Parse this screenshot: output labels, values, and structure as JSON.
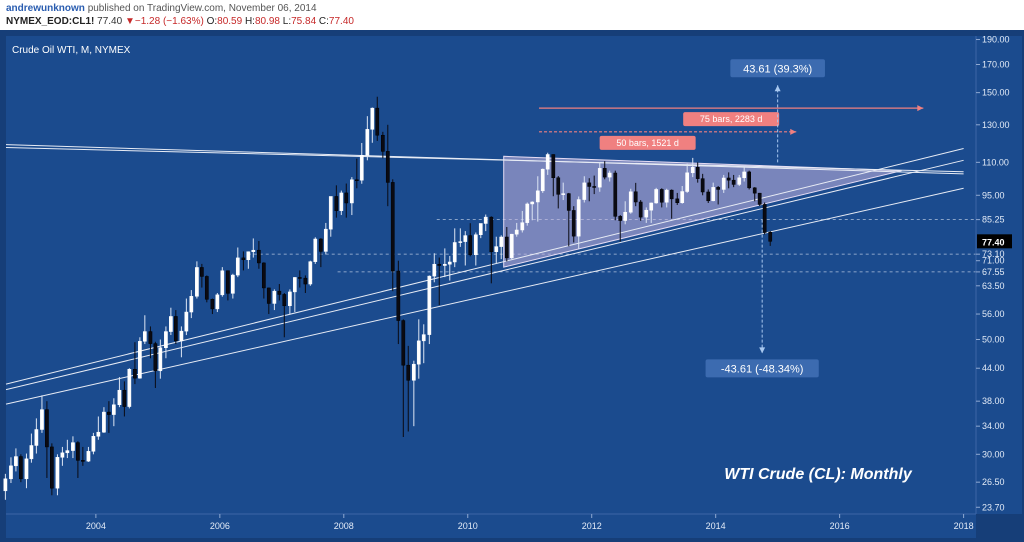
{
  "header": {
    "author": "andrewunknown",
    "published": "published on TradingView.com, November 06, 2014",
    "symbol": "NYMEX_EOD:CL1!",
    "last": "77.40",
    "change_arrow": "▼",
    "change": "−1.28 (−1.63%)",
    "o_label": "O:",
    "o": "80.59",
    "h_label": "H:",
    "h": "80.98",
    "l_label": "L:",
    "l": "75.84",
    "c_label": "C:",
    "c": "77.40"
  },
  "colors": {
    "background": "#1b4b8e",
    "frame": "#163e78",
    "up": "#ffffff",
    "down": "#0a0a12",
    "trendline": "#e8ecf5",
    "triangle_fill": "#c6b6e0",
    "measure_pink": "#f08080",
    "measure_blue": "#a8c8f0"
  },
  "chart_data": {
    "type": "candlestick",
    "title": "Crude Oil WTI, M, NYMEX",
    "annotation_title": "WTI Crude (CL): Monthly",
    "y_scale": "log",
    "ylim": [
      23.0,
      193.0
    ],
    "xlim": [
      2002.55,
      2018.2
    ],
    "x_ticks": [
      "2004",
      "2006",
      "2008",
      "2010",
      "2012",
      "2014",
      "2016",
      "2018"
    ],
    "y_ticks": [
      "190.00",
      "170.00",
      "150.00",
      "130.00",
      "110.00",
      "95.00",
      "85.25",
      "77.40",
      "73.10",
      "71.00",
      "67.55",
      "63.50",
      "56.00",
      "50.00",
      "44.00",
      "38.00",
      "34.00",
      "30.00",
      "26.50",
      "23.70"
    ],
    "last_price": "77.40",
    "levels": [
      {
        "price": 85.25,
        "from": 2009.5
      },
      {
        "price": 73.1,
        "from": 2006.45
      },
      {
        "price": 67.55,
        "from": 2007.9
      }
    ],
    "triangle": {
      "x0": 2010.58,
      "x1": 2017.0,
      "top": 113.0,
      "apex": 106.0,
      "bottom0": 69.0
    },
    "trendlines": [
      {
        "x0": 2002.55,
        "y0": 119.0,
        "x1": 2018.0,
        "y1": 104.5
      },
      {
        "x0": 2002.55,
        "y0": 117.5,
        "x1": 2018.0,
        "y1": 105.5
      },
      {
        "x0": 2002.55,
        "y0": 41.0,
        "x1": 2018.0,
        "y1": 117.0
      },
      {
        "x0": 2002.55,
        "y0": 40.0,
        "x1": 2018.0,
        "y1": 111.0
      },
      {
        "x0": 2002.55,
        "y0": 37.5,
        "x1": 2018.0,
        "y1": 98.0
      }
    ],
    "measures": [
      {
        "label": "75 bars, 2283 d",
        "x0": 2011.15,
        "x1": 2017.35,
        "price": 140.0,
        "dashed": false
      },
      {
        "label": "50 bars, 1521 d",
        "x0": 2011.15,
        "x1": 2015.3,
        "price": 126.0,
        "dashed": true
      }
    ],
    "projections": [
      {
        "label": "43.61 (39.3%)",
        "x": 2015.0,
        "from": 110.0,
        "to": 155.0
      },
      {
        "label": "-43.61 (-48.34%)",
        "x": 2014.75,
        "from": 85.25,
        "to": 47.0
      }
    ],
    "candles": [
      {
        "t": 2002.54,
        "o": 25.5,
        "h": 27.5,
        "l": 24.5,
        "c": 26.9
      },
      {
        "t": 2002.63,
        "o": 26.9,
        "h": 29.6,
        "l": 26.4,
        "c": 28.5
      },
      {
        "t": 2002.71,
        "o": 28.5,
        "h": 30.8,
        "l": 27.8,
        "c": 29.7
      },
      {
        "t": 2002.79,
        "o": 29.7,
        "h": 30.0,
        "l": 26.5,
        "c": 26.9
      },
      {
        "t": 2002.88,
        "o": 26.9,
        "h": 30.1,
        "l": 25.8,
        "c": 29.4
      },
      {
        "t": 2002.96,
        "o": 29.4,
        "h": 32.9,
        "l": 28.9,
        "c": 31.2
      },
      {
        "t": 2003.04,
        "o": 31.2,
        "h": 35.2,
        "l": 30.1,
        "c": 33.5
      },
      {
        "t": 2003.13,
        "o": 33.5,
        "h": 39.0,
        "l": 33.0,
        "c": 36.6
      },
      {
        "t": 2003.21,
        "o": 36.6,
        "h": 38.0,
        "l": 27.0,
        "c": 31.0
      },
      {
        "t": 2003.29,
        "o": 31.0,
        "h": 31.5,
        "l": 25.0,
        "c": 25.8
      },
      {
        "t": 2003.38,
        "o": 25.8,
        "h": 30.0,
        "l": 25.0,
        "c": 29.6
      },
      {
        "t": 2003.46,
        "o": 29.6,
        "h": 31.0,
        "l": 28.5,
        "c": 30.2
      },
      {
        "t": 2003.54,
        "o": 30.2,
        "h": 32.0,
        "l": 29.5,
        "c": 30.5
      },
      {
        "t": 2003.63,
        "o": 30.5,
        "h": 32.5,
        "l": 29.5,
        "c": 31.6
      },
      {
        "t": 2003.71,
        "o": 31.6,
        "h": 31.8,
        "l": 27.0,
        "c": 29.2
      },
      {
        "t": 2003.79,
        "o": 29.2,
        "h": 31.0,
        "l": 28.5,
        "c": 29.1
      },
      {
        "t": 2003.88,
        "o": 29.1,
        "h": 31.0,
        "l": 29.0,
        "c": 30.4
      },
      {
        "t": 2003.96,
        "o": 30.4,
        "h": 33.0,
        "l": 30.0,
        "c": 32.5
      },
      {
        "t": 2004.04,
        "o": 32.5,
        "h": 35.5,
        "l": 32.0,
        "c": 33.1
      },
      {
        "t": 2004.13,
        "o": 33.1,
        "h": 37.0,
        "l": 33.0,
        "c": 36.2
      },
      {
        "t": 2004.21,
        "o": 36.2,
        "h": 38.0,
        "l": 33.0,
        "c": 35.8
      },
      {
        "t": 2004.29,
        "o": 35.8,
        "h": 38.5,
        "l": 34.0,
        "c": 37.4
      },
      {
        "t": 2004.38,
        "o": 37.4,
        "h": 42.3,
        "l": 37.0,
        "c": 39.9
      },
      {
        "t": 2004.46,
        "o": 39.9,
        "h": 41.5,
        "l": 35.5,
        "c": 37.1
      },
      {
        "t": 2004.54,
        "o": 37.1,
        "h": 44.0,
        "l": 36.8,
        "c": 43.8
      },
      {
        "t": 2004.63,
        "o": 43.8,
        "h": 49.4,
        "l": 41.0,
        "c": 42.1
      },
      {
        "t": 2004.71,
        "o": 42.1,
        "h": 50.5,
        "l": 42.0,
        "c": 49.6
      },
      {
        "t": 2004.79,
        "o": 49.6,
        "h": 55.7,
        "l": 49.0,
        "c": 51.8
      },
      {
        "t": 2004.88,
        "o": 51.8,
        "h": 53.0,
        "l": 46.0,
        "c": 49.1
      },
      {
        "t": 2004.96,
        "o": 49.1,
        "h": 49.5,
        "l": 40.3,
        "c": 43.5
      },
      {
        "t": 2005.04,
        "o": 43.5,
        "h": 50.0,
        "l": 42.0,
        "c": 48.2
      },
      {
        "t": 2005.13,
        "o": 48.2,
        "h": 53.0,
        "l": 46.0,
        "c": 51.8
      },
      {
        "t": 2005.21,
        "o": 51.8,
        "h": 57.6,
        "l": 51.0,
        "c": 55.4
      },
      {
        "t": 2005.29,
        "o": 55.4,
        "h": 57.0,
        "l": 49.0,
        "c": 49.7
      },
      {
        "t": 2005.38,
        "o": 49.7,
        "h": 53.0,
        "l": 46.2,
        "c": 51.9
      },
      {
        "t": 2005.46,
        "o": 51.9,
        "h": 60.0,
        "l": 51.0,
        "c": 56.5
      },
      {
        "t": 2005.54,
        "o": 56.5,
        "h": 62.3,
        "l": 55.0,
        "c": 60.6
      },
      {
        "t": 2005.63,
        "o": 60.6,
        "h": 70.8,
        "l": 60.0,
        "c": 68.9
      },
      {
        "t": 2005.71,
        "o": 68.9,
        "h": 70.0,
        "l": 63.0,
        "c": 66.2
      },
      {
        "t": 2005.79,
        "o": 66.2,
        "h": 66.5,
        "l": 59.0,
        "c": 59.8
      },
      {
        "t": 2005.88,
        "o": 59.8,
        "h": 60.0,
        "l": 56.0,
        "c": 57.3
      },
      {
        "t": 2005.96,
        "o": 57.3,
        "h": 61.5,
        "l": 56.5,
        "c": 61.0
      },
      {
        "t": 2006.04,
        "o": 61.0,
        "h": 69.0,
        "l": 60.5,
        "c": 67.9
      },
      {
        "t": 2006.13,
        "o": 67.9,
        "h": 68.0,
        "l": 59.5,
        "c": 61.4
      },
      {
        "t": 2006.21,
        "o": 61.4,
        "h": 67.0,
        "l": 60.0,
        "c": 66.6
      },
      {
        "t": 2006.29,
        "o": 66.6,
        "h": 75.3,
        "l": 66.0,
        "c": 71.9
      },
      {
        "t": 2006.38,
        "o": 71.9,
        "h": 74.0,
        "l": 68.0,
        "c": 71.3
      },
      {
        "t": 2006.46,
        "o": 71.3,
        "h": 74.0,
        "l": 68.5,
        "c": 73.9
      },
      {
        "t": 2006.54,
        "o": 73.9,
        "h": 78.4,
        "l": 72.0,
        "c": 74.4
      },
      {
        "t": 2006.63,
        "o": 74.4,
        "h": 77.5,
        "l": 68.5,
        "c": 70.3
      },
      {
        "t": 2006.71,
        "o": 70.3,
        "h": 70.5,
        "l": 60.0,
        "c": 62.9
      },
      {
        "t": 2006.79,
        "o": 62.9,
        "h": 63.0,
        "l": 56.0,
        "c": 58.7
      },
      {
        "t": 2006.88,
        "o": 58.7,
        "h": 62.5,
        "l": 57.0,
        "c": 62.0
      },
      {
        "t": 2006.96,
        "o": 62.0,
        "h": 64.0,
        "l": 59.5,
        "c": 61.1
      },
      {
        "t": 2007.04,
        "o": 61.1,
        "h": 61.5,
        "l": 50.5,
        "c": 58.1
      },
      {
        "t": 2007.13,
        "o": 58.1,
        "h": 62.5,
        "l": 56.0,
        "c": 61.8
      },
      {
        "t": 2007.21,
        "o": 61.8,
        "h": 66.0,
        "l": 56.5,
        "c": 65.9
      },
      {
        "t": 2007.29,
        "o": 65.9,
        "h": 68.0,
        "l": 63.0,
        "c": 65.7
      },
      {
        "t": 2007.38,
        "o": 65.7,
        "h": 66.5,
        "l": 61.5,
        "c": 64.0
      },
      {
        "t": 2007.46,
        "o": 64.0,
        "h": 71.0,
        "l": 63.5,
        "c": 70.7
      },
      {
        "t": 2007.54,
        "o": 70.7,
        "h": 78.8,
        "l": 70.0,
        "c": 78.2
      },
      {
        "t": 2007.63,
        "o": 78.2,
        "h": 78.5,
        "l": 69.0,
        "c": 74.0
      },
      {
        "t": 2007.71,
        "o": 74.0,
        "h": 84.0,
        "l": 73.0,
        "c": 81.7
      },
      {
        "t": 2007.79,
        "o": 81.7,
        "h": 94.0,
        "l": 79.0,
        "c": 94.5
      },
      {
        "t": 2007.88,
        "o": 94.5,
        "h": 99.3,
        "l": 86.0,
        "c": 88.7
      },
      {
        "t": 2007.96,
        "o": 88.7,
        "h": 97.0,
        "l": 87.0,
        "c": 96.0
      },
      {
        "t": 2008.04,
        "o": 96.0,
        "h": 100.1,
        "l": 86.0,
        "c": 91.8
      },
      {
        "t": 2008.13,
        "o": 91.8,
        "h": 103.0,
        "l": 87.0,
        "c": 101.8
      },
      {
        "t": 2008.21,
        "o": 101.8,
        "h": 111.8,
        "l": 98.0,
        "c": 101.6
      },
      {
        "t": 2008.29,
        "o": 101.6,
        "h": 119.9,
        "l": 100.0,
        "c": 113.5
      },
      {
        "t": 2008.38,
        "o": 113.5,
        "h": 135.1,
        "l": 111.0,
        "c": 127.4
      },
      {
        "t": 2008.46,
        "o": 127.4,
        "h": 140.4,
        "l": 120.0,
        "c": 140.0
      },
      {
        "t": 2008.54,
        "o": 140.0,
        "h": 147.3,
        "l": 121.0,
        "c": 124.1
      },
      {
        "t": 2008.63,
        "o": 124.1,
        "h": 126.0,
        "l": 112.0,
        "c": 115.5
      },
      {
        "t": 2008.71,
        "o": 115.5,
        "h": 130.0,
        "l": 90.5,
        "c": 100.6
      },
      {
        "t": 2008.79,
        "o": 100.6,
        "h": 102.0,
        "l": 62.0,
        "c": 67.8
      },
      {
        "t": 2008.88,
        "o": 67.8,
        "h": 71.0,
        "l": 49.0,
        "c": 54.4
      },
      {
        "t": 2008.96,
        "o": 54.4,
        "h": 54.7,
        "l": 32.4,
        "c": 44.6
      },
      {
        "t": 2009.04,
        "o": 44.6,
        "h": 48.6,
        "l": 33.2,
        "c": 41.7
      },
      {
        "t": 2009.13,
        "o": 41.7,
        "h": 45.5,
        "l": 34.0,
        "c": 44.8
      },
      {
        "t": 2009.21,
        "o": 44.8,
        "h": 54.7,
        "l": 42.0,
        "c": 49.7
      },
      {
        "t": 2009.29,
        "o": 49.7,
        "h": 53.5,
        "l": 45.0,
        "c": 51.1
      },
      {
        "t": 2009.38,
        "o": 51.1,
        "h": 66.5,
        "l": 49.0,
        "c": 66.3
      },
      {
        "t": 2009.46,
        "o": 66.3,
        "h": 73.4,
        "l": 64.5,
        "c": 69.9
      },
      {
        "t": 2009.54,
        "o": 69.9,
        "h": 72.0,
        "l": 58.3,
        "c": 69.5
      },
      {
        "t": 2009.63,
        "o": 69.5,
        "h": 75.0,
        "l": 66.0,
        "c": 69.9
      },
      {
        "t": 2009.71,
        "o": 69.9,
        "h": 72.5,
        "l": 65.0,
        "c": 70.6
      },
      {
        "t": 2009.79,
        "o": 70.6,
        "h": 82.0,
        "l": 69.0,
        "c": 77.0
      },
      {
        "t": 2009.88,
        "o": 77.0,
        "h": 82.0,
        "l": 75.5,
        "c": 77.3
      },
      {
        "t": 2009.96,
        "o": 77.3,
        "h": 81.0,
        "l": 69.5,
        "c": 79.4
      },
      {
        "t": 2010.04,
        "o": 79.4,
        "h": 83.9,
        "l": 72.4,
        "c": 72.9
      },
      {
        "t": 2010.13,
        "o": 72.9,
        "h": 80.5,
        "l": 69.5,
        "c": 79.7
      },
      {
        "t": 2010.21,
        "o": 79.7,
        "h": 83.5,
        "l": 78.5,
        "c": 83.8
      },
      {
        "t": 2010.29,
        "o": 83.8,
        "h": 87.2,
        "l": 81.0,
        "c": 86.2
      },
      {
        "t": 2010.38,
        "o": 86.2,
        "h": 86.5,
        "l": 64.2,
        "c": 73.9
      },
      {
        "t": 2010.46,
        "o": 73.9,
        "h": 79.0,
        "l": 70.0,
        "c": 75.6
      },
      {
        "t": 2010.54,
        "o": 75.6,
        "h": 79.5,
        "l": 71.5,
        "c": 78.9
      },
      {
        "t": 2010.63,
        "o": 78.9,
        "h": 82.5,
        "l": 70.8,
        "c": 71.9
      },
      {
        "t": 2010.71,
        "o": 71.9,
        "h": 80.0,
        "l": 71.5,
        "c": 79.9
      },
      {
        "t": 2010.79,
        "o": 79.9,
        "h": 84.0,
        "l": 79.0,
        "c": 81.4
      },
      {
        "t": 2010.88,
        "o": 81.4,
        "h": 88.6,
        "l": 80.5,
        "c": 84.1
      },
      {
        "t": 2010.96,
        "o": 84.1,
        "h": 92.0,
        "l": 83.0,
        "c": 91.4
      },
      {
        "t": 2011.04,
        "o": 91.4,
        "h": 92.5,
        "l": 85.0,
        "c": 92.2
      },
      {
        "t": 2011.13,
        "o": 92.2,
        "h": 103.4,
        "l": 84.5,
        "c": 96.9
      },
      {
        "t": 2011.21,
        "o": 96.9,
        "h": 107.0,
        "l": 96.0,
        "c": 106.7
      },
      {
        "t": 2011.29,
        "o": 106.7,
        "h": 114.8,
        "l": 104.0,
        "c": 113.9
      },
      {
        "t": 2011.38,
        "o": 113.9,
        "h": 114.0,
        "l": 94.6,
        "c": 102.7
      },
      {
        "t": 2011.46,
        "o": 102.7,
        "h": 103.5,
        "l": 89.6,
        "c": 95.4
      },
      {
        "t": 2011.54,
        "o": 95.4,
        "h": 100.5,
        "l": 93.0,
        "c": 95.7
      },
      {
        "t": 2011.63,
        "o": 95.7,
        "h": 96.0,
        "l": 75.7,
        "c": 88.8
      },
      {
        "t": 2011.71,
        "o": 88.8,
        "h": 90.5,
        "l": 77.0,
        "c": 79.2
      },
      {
        "t": 2011.79,
        "o": 79.2,
        "h": 94.5,
        "l": 74.9,
        "c": 93.2
      },
      {
        "t": 2011.88,
        "o": 93.2,
        "h": 103.4,
        "l": 92.0,
        "c": 100.4
      },
      {
        "t": 2011.96,
        "o": 100.4,
        "h": 102.5,
        "l": 92.5,
        "c": 98.8
      },
      {
        "t": 2012.04,
        "o": 98.8,
        "h": 103.7,
        "l": 95.5,
        "c": 98.5
      },
      {
        "t": 2012.13,
        "o": 98.5,
        "h": 109.8,
        "l": 96.5,
        "c": 107.1
      },
      {
        "t": 2012.21,
        "o": 107.1,
        "h": 110.6,
        "l": 102.0,
        "c": 103.0
      },
      {
        "t": 2012.29,
        "o": 103.0,
        "h": 106.0,
        "l": 101.0,
        "c": 104.9
      },
      {
        "t": 2012.38,
        "o": 104.9,
        "h": 106.0,
        "l": 85.0,
        "c": 86.5
      },
      {
        "t": 2012.46,
        "o": 86.5,
        "h": 87.0,
        "l": 77.3,
        "c": 84.9
      },
      {
        "t": 2012.54,
        "o": 84.9,
        "h": 92.5,
        "l": 83.5,
        "c": 88.1
      },
      {
        "t": 2012.63,
        "o": 88.1,
        "h": 97.8,
        "l": 87.5,
        "c": 96.5
      },
      {
        "t": 2012.71,
        "o": 96.5,
        "h": 100.4,
        "l": 90.5,
        "c": 92.2
      },
      {
        "t": 2012.79,
        "o": 92.2,
        "h": 93.0,
        "l": 84.8,
        "c": 86.2
      },
      {
        "t": 2012.88,
        "o": 86.2,
        "h": 90.0,
        "l": 84.0,
        "c": 88.9
      },
      {
        "t": 2012.96,
        "o": 88.9,
        "h": 92.0,
        "l": 84.0,
        "c": 91.8
      },
      {
        "t": 2013.04,
        "o": 91.8,
        "h": 98.2,
        "l": 91.5,
        "c": 97.5
      },
      {
        "t": 2013.13,
        "o": 97.5,
        "h": 98.0,
        "l": 90.0,
        "c": 92.1
      },
      {
        "t": 2013.21,
        "o": 92.1,
        "h": 97.8,
        "l": 90.0,
        "c": 97.2
      },
      {
        "t": 2013.29,
        "o": 97.2,
        "h": 97.5,
        "l": 85.6,
        "c": 93.5
      },
      {
        "t": 2013.38,
        "o": 93.5,
        "h": 96.0,
        "l": 91.0,
        "c": 91.9
      },
      {
        "t": 2013.46,
        "o": 91.9,
        "h": 99.0,
        "l": 91.5,
        "c": 96.6
      },
      {
        "t": 2013.54,
        "o": 96.6,
        "h": 109.3,
        "l": 96.0,
        "c": 105.0
      },
      {
        "t": 2013.63,
        "o": 105.0,
        "h": 112.2,
        "l": 103.0,
        "c": 107.6
      },
      {
        "t": 2013.71,
        "o": 107.6,
        "h": 110.0,
        "l": 100.5,
        "c": 102.3
      },
      {
        "t": 2013.79,
        "o": 102.3,
        "h": 104.5,
        "l": 95.0,
        "c": 96.4
      },
      {
        "t": 2013.88,
        "o": 96.4,
        "h": 97.5,
        "l": 91.8,
        "c": 92.7
      },
      {
        "t": 2013.96,
        "o": 92.7,
        "h": 100.5,
        "l": 92.5,
        "c": 98.4
      },
      {
        "t": 2014.04,
        "o": 98.4,
        "h": 99.0,
        "l": 91.2,
        "c": 97.5
      },
      {
        "t": 2014.13,
        "o": 97.5,
        "h": 104.0,
        "l": 96.0,
        "c": 102.6
      },
      {
        "t": 2014.21,
        "o": 102.6,
        "h": 105.2,
        "l": 98.0,
        "c": 101.6
      },
      {
        "t": 2014.29,
        "o": 101.6,
        "h": 104.0,
        "l": 98.5,
        "c": 99.7
      },
      {
        "t": 2014.38,
        "o": 99.7,
        "h": 104.0,
        "l": 99.0,
        "c": 102.7
      },
      {
        "t": 2014.46,
        "o": 102.7,
        "h": 107.7,
        "l": 101.0,
        "c": 105.4
      },
      {
        "t": 2014.54,
        "o": 105.4,
        "h": 106.0,
        "l": 97.5,
        "c": 98.2
      },
      {
        "t": 2014.63,
        "o": 98.2,
        "h": 98.5,
        "l": 92.5,
        "c": 95.9
      },
      {
        "t": 2014.71,
        "o": 95.9,
        "h": 96.0,
        "l": 90.6,
        "c": 91.2
      },
      {
        "t": 2014.79,
        "o": 91.2,
        "h": 92.0,
        "l": 79.8,
        "c": 80.5
      },
      {
        "t": 2014.88,
        "o": 80.59,
        "h": 80.98,
        "l": 75.84,
        "c": 77.4
      }
    ]
  }
}
